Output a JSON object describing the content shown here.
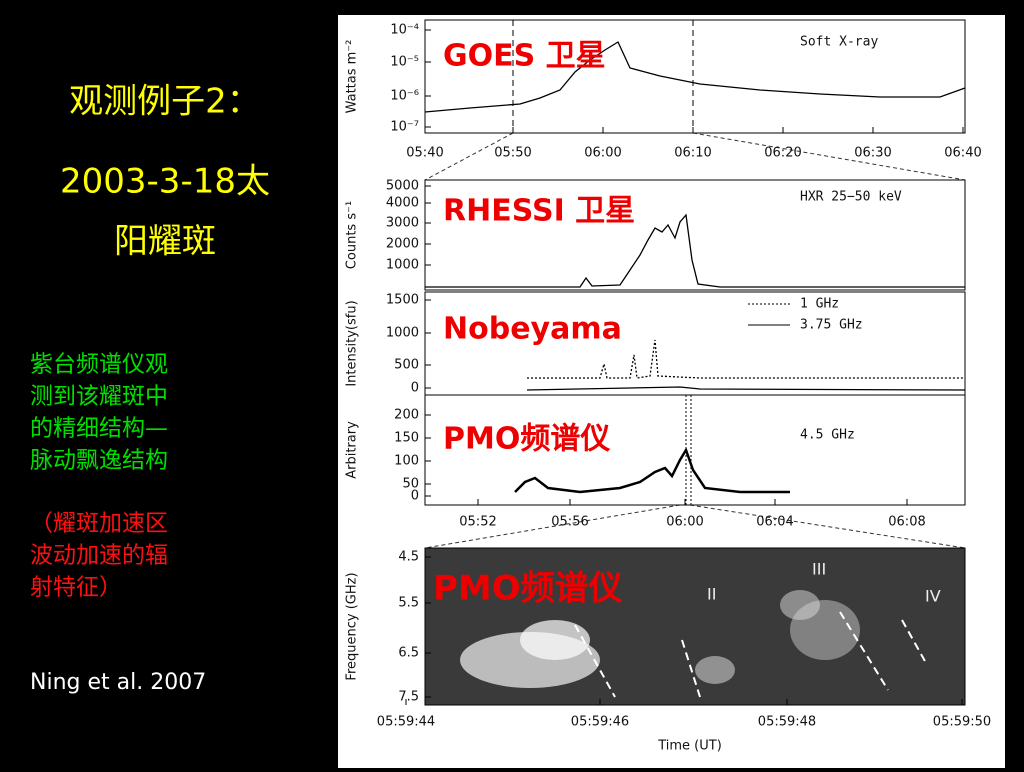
{
  "slide": {
    "title": [
      "观测例子2：",
      "2003-3-18太",
      "阳耀斑"
    ],
    "description_green": [
      "紫台频谱仪观",
      "测到该耀斑中",
      "的精细结构—",
      "脉动飘逸结构"
    ],
    "description_red": [
      "（耀斑加速区",
      "波动加速的辐",
      "射特征）"
    ],
    "citation": "Ning et al. 2007"
  },
  "figure": {
    "panels": [
      {
        "label": "GOES 卫星",
        "y_title": "Wattas m⁻²",
        "note": "Soft X-ray",
        "yticks": [
          "10⁻⁴",
          "10⁻⁵",
          "10⁻⁶",
          "10⁻⁷"
        ],
        "xticks": [
          "05:40",
          "05:50",
          "06:00",
          "06:10",
          "06:20",
          "06:30",
          "06:40"
        ]
      },
      {
        "label": "RHESSI 卫星",
        "y_title": "Counts s⁻¹",
        "note": "HXR 25−50 keV",
        "yticks": [
          "5000",
          "4000",
          "3000",
          "2000",
          "1000"
        ]
      },
      {
        "label": "Nobeyama",
        "y_title": "Intensity(sfu)",
        "legend": [
          "1 GHz",
          "3.75 GHz"
        ],
        "yticks": [
          "1500",
          "1000",
          "500",
          "0"
        ]
      },
      {
        "label": "PMO频谱仪",
        "y_title": "Arbitrary",
        "note": "4.5 GHz",
        "yticks": [
          "200",
          "150",
          "100",
          "50",
          "0"
        ],
        "xticks": [
          "05:52",
          "05:56",
          "06:00",
          "06:04",
          "06:08"
        ]
      },
      {
        "label": "PMO频谱仪",
        "y_title": "Frequency (GHz)",
        "x_title": "Time (UT)",
        "yticks": [
          "4.5",
          "5.5",
          "6.5",
          "7.5"
        ],
        "xticks": [
          "05:59:44",
          "05:59:46",
          "05:59:48",
          "05:59:50"
        ],
        "annotations": [
          "II",
          "III",
          "IV"
        ]
      }
    ]
  }
}
